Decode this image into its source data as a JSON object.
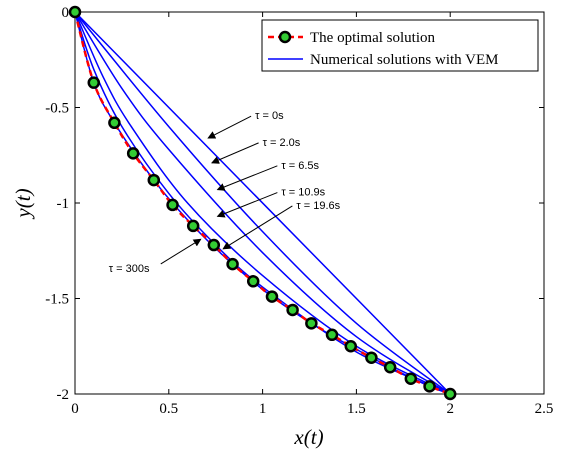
{
  "chart_data": {
    "type": "line",
    "xlabel": "x(t)",
    "ylabel": "y(t)",
    "xlim": [
      0,
      2.5
    ],
    "ylim": [
      -2,
      0
    ],
    "xticks": [
      0,
      0.5,
      1,
      1.5,
      2,
      2.5
    ],
    "xtick_labels": [
      "0",
      "0.5",
      "1",
      "1.5",
      "2",
      "2.5"
    ],
    "yticks": [
      0,
      -0.5,
      -1,
      -1.5,
      -2
    ],
    "ytick_labels": [
      "0",
      "-0.5",
      "-1",
      "-1.5",
      "-2"
    ],
    "legend_position": "top-right",
    "legend": [
      {
        "label": "The optimal solution",
        "style": "dashed-circles",
        "color": "#ff0000",
        "marker_fill": "#33cc33"
      },
      {
        "label": "Numerical solutions with VEM",
        "style": "solid",
        "color": "#0000ff"
      }
    ],
    "series": [
      {
        "name": "The optimal solution",
        "color": "#ff0000",
        "x": [
          0,
          0.1,
          0.21,
          0.31,
          0.42,
          0.52,
          0.63,
          0.74,
          0.84,
          0.95,
          1.05,
          1.16,
          1.26,
          1.37,
          1.47,
          1.58,
          1.68,
          1.79,
          1.89,
          2.0
        ],
        "y": [
          0,
          -0.37,
          -0.58,
          -0.74,
          -0.88,
          -1.01,
          -1.12,
          -1.22,
          -1.32,
          -1.41,
          -1.49,
          -1.56,
          -1.63,
          -1.69,
          -1.75,
          -1.81,
          -1.86,
          -1.92,
          -1.96,
          -2.0
        ]
      }
    ],
    "vem_curves": [
      {
        "color": "#0000ff",
        "x": [
          0,
          2.0
        ],
        "y": [
          0,
          -2.0
        ]
      },
      {
        "color": "#0000ff",
        "x": [
          0,
          0.5,
          1.0,
          1.5,
          2.0
        ],
        "y": [
          0,
          -0.6,
          -1.15,
          -1.63,
          -2.0
        ]
      },
      {
        "color": "#0000ff",
        "x": [
          0,
          0.25,
          0.5,
          1.0,
          1.5,
          2.0
        ],
        "y": [
          0,
          -0.4,
          -0.72,
          -1.26,
          -1.7,
          -2.0
        ]
      },
      {
        "color": "#0000ff",
        "x": [
          0,
          0.15,
          0.3,
          0.6,
          1.0,
          1.5,
          2.0
        ],
        "y": [
          0,
          -0.34,
          -0.6,
          -1.0,
          -1.38,
          -1.75,
          -2.0
        ]
      },
      {
        "color": "#0000ff",
        "x": [
          0,
          0.1,
          0.25,
          0.5,
          0.75,
          1.0,
          1.5,
          2.0
        ],
        "y": [
          0,
          -0.3,
          -0.6,
          -0.95,
          -1.22,
          -1.44,
          -1.78,
          -2.0
        ]
      },
      {
        "color": "#0000ff",
        "x": [
          0,
          0.1,
          0.21,
          0.42,
          0.63,
          0.84,
          1.05,
          1.26,
          1.47,
          1.68,
          1.89,
          2.0
        ],
        "y": [
          0,
          -0.37,
          -0.58,
          -0.88,
          -1.12,
          -1.32,
          -1.49,
          -1.63,
          -1.75,
          -1.86,
          -1.96,
          -2.0
        ]
      }
    ],
    "annotations": [
      {
        "text": "τ = 0s",
        "tx": 0.96,
        "ty": -0.54,
        "ax": 0.71,
        "ay": -0.66,
        "anchor": "start"
      },
      {
        "text": "τ = 2.0s",
        "tx": 1.0,
        "ty": -0.68,
        "ax": 0.73,
        "ay": -0.79,
        "anchor": "start"
      },
      {
        "text": "τ = 6.5s",
        "tx": 1.1,
        "ty": -0.8,
        "ax": 0.76,
        "ay": -0.93,
        "anchor": "start"
      },
      {
        "text": "τ = 10.9s",
        "tx": 1.1,
        "ty": -0.94,
        "ax": 0.76,
        "ay": -1.07,
        "anchor": "start"
      },
      {
        "text": "τ = 19.6s",
        "tx": 1.18,
        "ty": -1.01,
        "ax": 0.79,
        "ay": -1.24,
        "anchor": "start"
      },
      {
        "text": "τ = 300s",
        "tx": 0.18,
        "ty": -1.34,
        "ax": 0.67,
        "ay": -1.19,
        "anchor": "start"
      }
    ]
  }
}
